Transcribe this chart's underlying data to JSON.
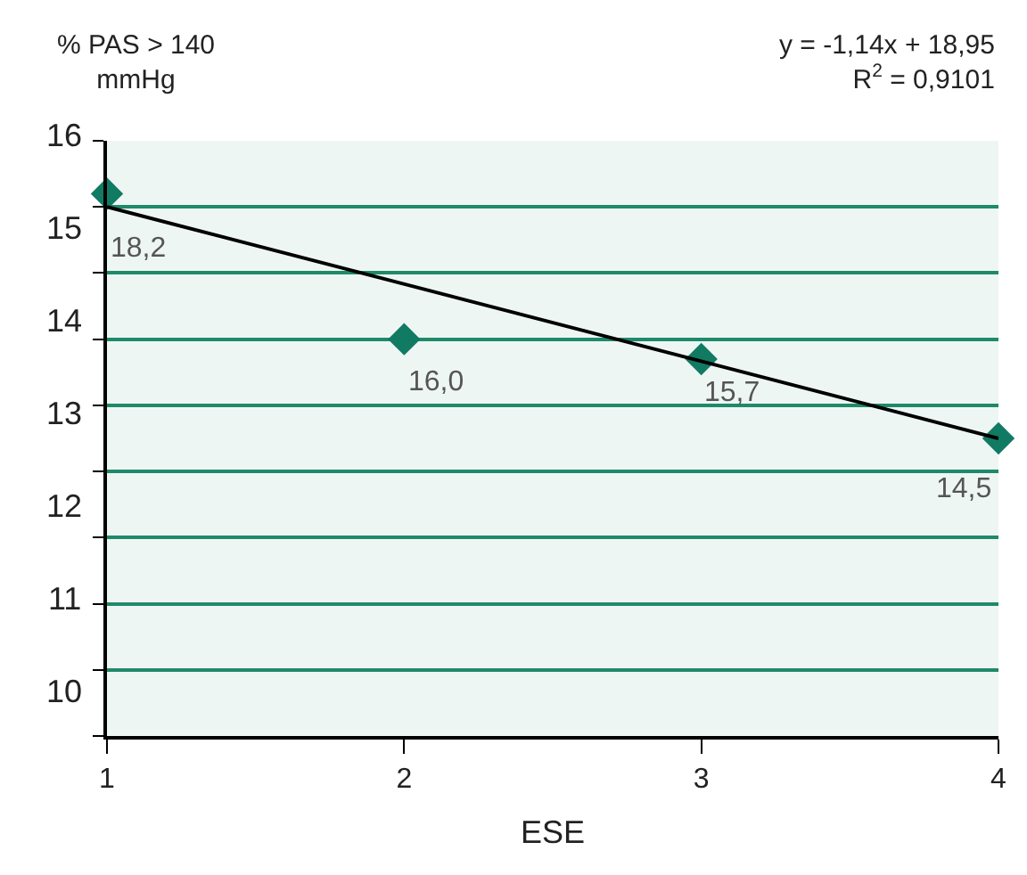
{
  "chart_data": {
    "type": "scatter",
    "xlabel": "ESE",
    "ylabel": "% PAS > 140 mmHg",
    "annotations": [
      "y = -1,14x + 18,95",
      "R$^{2}$ = 0,9101",
      "10",
      "11",
      "12",
      "13",
      "14",
      "15",
      "16"
    ],
    "x": [
      1,
      2,
      3,
      4
    ],
    "xlim": [
      1,
      4
    ],
    "xticks": [
      1,
      2,
      3,
      4
    ],
    "ylim": [
      10,
      19
    ],
    "yticks": [
      {
        "value": 10,
        "label": null
      },
      {
        "value": 11,
        "label": null
      },
      {
        "value": 12,
        "label": null
      },
      {
        "value": 13,
        "label": null
      },
      {
        "value": 14,
        "label": null
      },
      {
        "value": 15,
        "label": null
      },
      {
        "value": 16,
        "label": null
      },
      {
        "value": 17,
        "label": null
      },
      {
        "value": 18,
        "label": null
      },
      {
        "value": 19,
        "label": null
      }
    ],
    "tick_labels": "x",
    "grid": "y",
    "marker": "diamond",
    "series": [
      {
        "color": "#117a63",
        "values": [
          18.2,
          16.0,
          15.7,
          14.5
        ],
        "value_labels": [
          "18,2",
          "16,0",
          "15,7",
          "14,5"
        ]
      },
      {
        "type": "line",
        "color": "#000000",
        "x": [
          1,
          4
        ],
        "values": [
          18.0,
          14.5
        ],
        "line_style": "solid",
        "marker": "none"
      }
    ]
  }
}
